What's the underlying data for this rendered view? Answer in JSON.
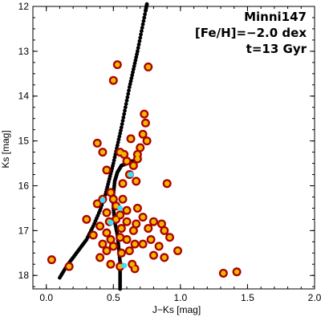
{
  "chart_data": {
    "type": "scatter",
    "xlabel": "J−Ks [mag]",
    "ylabel": "Ks [mag]",
    "xlim": [
      -0.1,
      2.0
    ],
    "ylim": [
      18.3,
      12.0
    ],
    "y_inverted": true,
    "x_ticks": [
      0.0,
      0.5,
      1.0,
      1.5,
      2.0
    ],
    "x_tick_labels": [
      "0.0",
      "0.5",
      "1.0",
      "1.5",
      "2.0"
    ],
    "y_ticks": [
      12,
      13,
      14,
      15,
      16,
      17,
      18
    ],
    "y_tick_labels": [
      "12",
      "13",
      "14",
      "15",
      "16",
      "17",
      "18"
    ],
    "annotations": [
      "Minni147",
      "[Fe/H]=−2.0 dex",
      "t=13 Gyr"
    ],
    "legend": "none",
    "grid": false,
    "colors": {
      "star": "#aa0000",
      "overlap": "#ffd700",
      "highlight": "#33e0ff",
      "isochrone": "#000000"
    },
    "isochrone_rgb": [
      [
        0.1,
        18.05
      ],
      [
        0.15,
        17.8
      ],
      [
        0.2,
        17.6
      ],
      [
        0.25,
        17.4
      ],
      [
        0.3,
        17.2
      ],
      [
        0.35,
        16.9
      ],
      [
        0.4,
        16.55
      ],
      [
        0.44,
        16.2
      ],
      [
        0.47,
        15.85
      ],
      [
        0.5,
        15.5
      ],
      [
        0.53,
        15.1
      ],
      [
        0.56,
        14.7
      ],
      [
        0.59,
        14.25
      ],
      [
        0.62,
        13.8
      ],
      [
        0.65,
        13.4
      ],
      [
        0.68,
        13.0
      ],
      [
        0.71,
        12.55
      ],
      [
        0.74,
        12.1
      ],
      [
        0.75,
        11.95
      ]
    ],
    "isochrone_ms": [
      [
        0.55,
        18.3
      ],
      [
        0.55,
        18.0
      ],
      [
        0.55,
        17.7
      ],
      [
        0.54,
        17.4
      ],
      [
        0.53,
        17.1
      ],
      [
        0.51,
        16.8
      ],
      [
        0.5,
        16.5
      ],
      [
        0.5,
        16.2
      ],
      [
        0.51,
        15.9
      ],
      [
        0.53,
        15.7
      ],
      [
        0.56,
        15.55
      ],
      [
        0.6,
        15.5
      ],
      [
        0.64,
        15.45
      ]
    ],
    "stars": [
      {
        "x": 0.53,
        "y": 13.3
      },
      {
        "x": 0.76,
        "y": 13.35
      },
      {
        "x": 0.5,
        "y": 13.65
      },
      {
        "x": 0.73,
        "y": 14.4
      },
      {
        "x": 0.74,
        "y": 14.6
      },
      {
        "x": 0.72,
        "y": 14.85
      },
      {
        "x": 0.63,
        "y": 14.95
      },
      {
        "x": 0.38,
        "y": 15.05
      },
      {
        "x": 0.75,
        "y": 15.0
      },
      {
        "x": 0.42,
        "y": 15.25
      },
      {
        "x": 0.55,
        "y": 15.25
      },
      {
        "x": 0.58,
        "y": 15.3
      },
      {
        "x": 0.7,
        "y": 15.15
      },
      {
        "x": 0.68,
        "y": 15.3
      },
      {
        "x": 0.68,
        "y": 15.4
      },
      {
        "x": 0.6,
        "y": 15.45
      },
      {
        "x": 0.65,
        "y": 15.55
      },
      {
        "x": 0.45,
        "y": 15.65
      },
      {
        "x": 0.62,
        "y": 15.75
      },
      {
        "x": 0.67,
        "y": 15.9
      },
      {
        "x": 0.57,
        "y": 15.95
      },
      {
        "x": 0.9,
        "y": 15.95
      },
      {
        "x": 0.48,
        "y": 16.15
      },
      {
        "x": 0.42,
        "y": 16.3
      },
      {
        "x": 0.5,
        "y": 16.3
      },
      {
        "x": 0.57,
        "y": 16.3
      },
      {
        "x": 0.38,
        "y": 16.4
      },
      {
        "x": 0.52,
        "y": 16.45
      },
      {
        "x": 0.6,
        "y": 16.55
      },
      {
        "x": 0.45,
        "y": 16.6
      },
      {
        "x": 0.68,
        "y": 16.5
      },
      {
        "x": 0.55,
        "y": 16.65
      },
      {
        "x": 0.72,
        "y": 16.7
      },
      {
        "x": 0.52,
        "y": 16.75
      },
      {
        "x": 0.3,
        "y": 16.75
      },
      {
        "x": 0.47,
        "y": 16.8
      },
      {
        "x": 0.6,
        "y": 16.8
      },
      {
        "x": 0.67,
        "y": 16.85
      },
      {
        "x": 0.8,
        "y": 16.8
      },
      {
        "x": 0.86,
        "y": 16.85
      },
      {
        "x": 0.4,
        "y": 16.9
      },
      {
        "x": 0.56,
        "y": 16.95
      },
      {
        "x": 0.76,
        "y": 16.95
      },
      {
        "x": 0.65,
        "y": 17.0
      },
      {
        "x": 0.45,
        "y": 17.05
      },
      {
        "x": 0.35,
        "y": 17.1
      },
      {
        "x": 0.55,
        "y": 17.15
      },
      {
        "x": 0.48,
        "y": 17.2
      },
      {
        "x": 0.6,
        "y": 17.2
      },
      {
        "x": 0.78,
        "y": 17.2
      },
      {
        "x": 0.88,
        "y": 17.0
      },
      {
        "x": 0.42,
        "y": 17.3
      },
      {
        "x": 0.5,
        "y": 17.35
      },
      {
        "x": 0.66,
        "y": 17.3
      },
      {
        "x": 0.72,
        "y": 17.3
      },
      {
        "x": 0.84,
        "y": 17.35
      },
      {
        "x": 0.92,
        "y": 17.15
      },
      {
        "x": 0.45,
        "y": 17.45
      },
      {
        "x": 0.56,
        "y": 17.5
      },
      {
        "x": 0.62,
        "y": 17.45
      },
      {
        "x": 0.8,
        "y": 17.55
      },
      {
        "x": 0.98,
        "y": 17.45
      },
      {
        "x": 0.4,
        "y": 17.6
      },
      {
        "x": 0.88,
        "y": 17.6
      },
      {
        "x": 0.48,
        "y": 17.75
      },
      {
        "x": 0.55,
        "y": 17.8
      },
      {
        "x": 0.64,
        "y": 17.75
      },
      {
        "x": 0.17,
        "y": 17.8
      },
      {
        "x": 0.66,
        "y": 17.85
      },
      {
        "x": 0.04,
        "y": 17.65
      },
      {
        "x": 1.32,
        "y": 17.95
      },
      {
        "x": 1.42,
        "y": 17.92
      }
    ],
    "highlights": [
      {
        "x": 0.63,
        "y": 15.75
      },
      {
        "x": 0.42,
        "y": 16.32
      },
      {
        "x": 0.55,
        "y": 16.5
      },
      {
        "x": 0.48,
        "y": 16.82
      },
      {
        "x": 0.58,
        "y": 17.78
      }
    ]
  }
}
